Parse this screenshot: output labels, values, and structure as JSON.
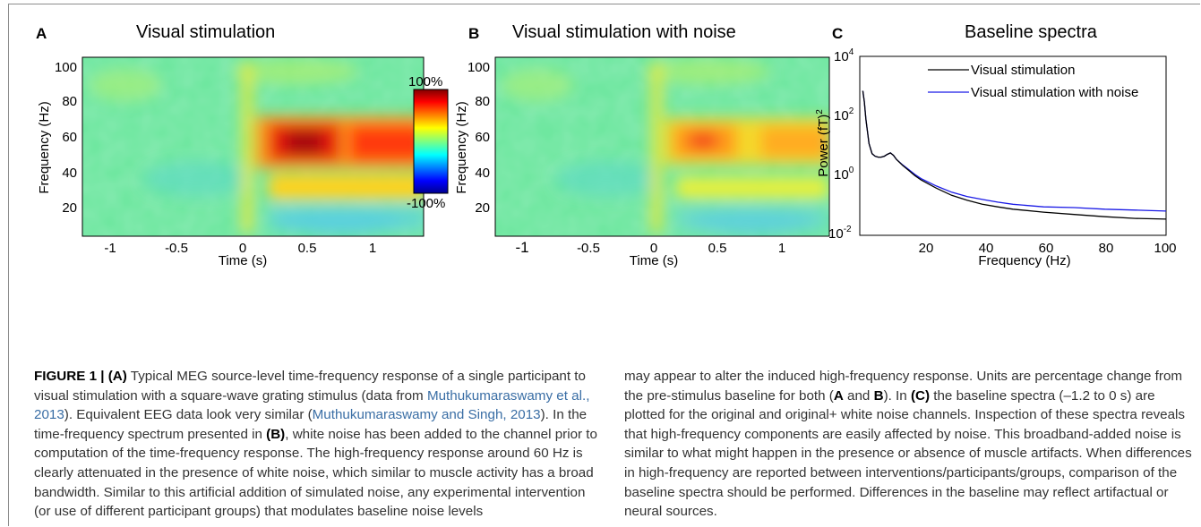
{
  "panels": {
    "A": {
      "letter": "A",
      "title": "Visual stimulation"
    },
    "B": {
      "letter": "B",
      "title": "Visual stimulation with noise"
    },
    "C": {
      "letter": "C",
      "title": "Baseline spectra"
    }
  },
  "tf_axes": {
    "ylabel": "Frequency (Hz)",
    "xlabel": "Time (s)",
    "y_ticks": [
      "100",
      "80",
      "60",
      "40",
      "20"
    ],
    "x_ticks": [
      "-1",
      "-0.5",
      "0",
      "0.5",
      "1"
    ]
  },
  "colorbar": {
    "max_label": "100%",
    "min_label": "-100%"
  },
  "spectra": {
    "ylabel": "Power (fT)",
    "ylabel_sup": "2",
    "xlabel": "Frequency (Hz)",
    "x_ticks": [
      "20",
      "40",
      "60",
      "80",
      "100"
    ],
    "y_ticks": [
      {
        "base": "10",
        "exp": "4"
      },
      {
        "base": "10",
        "exp": "2"
      },
      {
        "base": "10",
        "exp": "0"
      },
      {
        "base": "10",
        "exp": "-2"
      }
    ],
    "legend": [
      {
        "label": "Visual stimulation",
        "color": "#000000"
      },
      {
        "label": "Visual stimulation with noise",
        "color": "#1a1ae6"
      }
    ]
  },
  "chart_data": [
    {
      "type": "heatmap",
      "title": "Visual stimulation",
      "xlabel": "Time (s)",
      "ylabel": "Frequency (Hz)",
      "xlim": [
        -1.25,
        1.25
      ],
      "ylim": [
        5,
        105
      ],
      "clim": [
        -100,
        100
      ],
      "color_scale_labels": [
        "100%",
        "-100%"
      ],
      "response": {
        "time_range": [
          0.1,
          1.25
        ],
        "freq_range": [
          40,
          68
        ],
        "approx_percent_change": 85
      }
    },
    {
      "type": "heatmap",
      "title": "Visual stimulation with noise",
      "xlabel": "Time (s)",
      "ylabel": "Frequency (Hz)",
      "xlim": [
        -1.25,
        1.25
      ],
      "ylim": [
        5,
        105
      ],
      "clim": [
        -100,
        100
      ],
      "response": {
        "time_range": [
          0.1,
          1.25
        ],
        "freq_range": [
          40,
          68
        ],
        "approx_percent_change": 45
      }
    },
    {
      "type": "line",
      "title": "Baseline spectra",
      "xlabel": "Frequency (Hz)",
      "ylabel": "Power (fT)^2",
      "yscale": "log",
      "xlim": [
        0,
        100
      ],
      "ylim": [
        0.01,
        10000
      ],
      "x": [
        1,
        1.5,
        2,
        3,
        4,
        5,
        6,
        7,
        8,
        9,
        10,
        11,
        12,
        14,
        16,
        18,
        20,
        25,
        30,
        35,
        40,
        45,
        50,
        60,
        70,
        80,
        90,
        100
      ],
      "series": [
        {
          "name": "Visual stimulation",
          "values": [
            700,
            300,
            80,
            12,
            5.5,
            4.5,
            4.2,
            4.2,
            4.5,
            5.2,
            5.8,
            4.8,
            3.5,
            2.2,
            1.5,
            1.0,
            0.72,
            0.38,
            0.22,
            0.15,
            0.11,
            0.09,
            0.075,
            0.06,
            0.05,
            0.042,
            0.037,
            0.035
          ]
        },
        {
          "name": "Visual stimulation with noise",
          "values": [
            700,
            300,
            80,
            12,
            5.5,
            4.5,
            4.2,
            4.2,
            4.5,
            5.2,
            5.8,
            4.8,
            3.5,
            2.3,
            1.6,
            1.1,
            0.8,
            0.45,
            0.28,
            0.2,
            0.16,
            0.13,
            0.11,
            0.09,
            0.085,
            0.075,
            0.07,
            0.065
          ]
        }
      ]
    }
  ],
  "caption": {
    "left": [
      {
        "t": "FIGURE 1 | (A)",
        "b": true
      },
      {
        "t": " Typical MEG source-level time-frequency response of a single participant to visual stimulation with a square-wave grating stimulus (data from "
      },
      {
        "t": "Muthukumaraswamy et al., 2013",
        "ref": true
      },
      {
        "t": "). Equivalent EEG data look very similar ("
      },
      {
        "t": "Muthukumaraswamy and Singh, 2013",
        "ref": true
      },
      {
        "t": "). In the time-frequency spectrum presented in "
      },
      {
        "t": "(B)",
        "b": true
      },
      {
        "t": ", white noise has been added to the channel prior to computation of the time-frequency response. The high-frequency response around 60 Hz is clearly attenuated in the presence of white noise, which similar to muscle activity has a broad bandwidth. Similar to this artificial addition of simulated noise, any experimental intervention (or use of different participant groups) that modulates baseline noise levels"
      }
    ],
    "right": [
      {
        "t": "may appear to alter the induced high-frequency response. Units are percentage change from the pre-stimulus baseline for both ("
      },
      {
        "t": "A",
        "b": true
      },
      {
        "t": " and "
      },
      {
        "t": "B",
        "b": true
      },
      {
        "t": "). In "
      },
      {
        "t": "(C)",
        "b": true
      },
      {
        "t": " the baseline spectra (–1.2 to 0 s) are plotted for the original and original+ white noise channels. Inspection of these spectra reveals that high-frequency components are easily affected by noise. This broadband-added noise is similar to what might happen in the presence or absence of muscle artifacts. When differences in high-frequency are reported between interventions/participants/groups, comparison of the baseline spectra should be performed. Differences in the baseline may reflect artifactual or neural sources."
      }
    ]
  }
}
